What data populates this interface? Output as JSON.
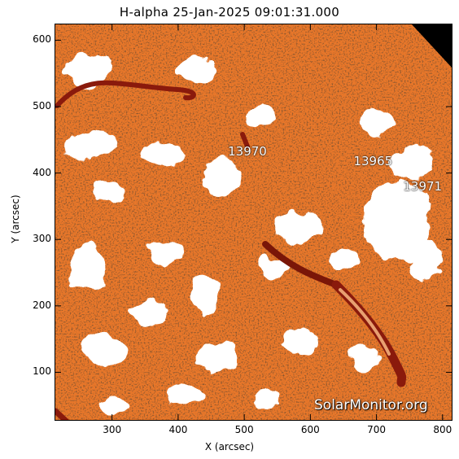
{
  "title": "H-alpha 25-Jan-2025 09:01:31.000",
  "axes": {
    "x_label": "X (arcsec)",
    "y_label": "Y (arcsec)",
    "x_ticks": [
      "300",
      "400",
      "500",
      "600",
      "700",
      "800"
    ],
    "y_ticks": [
      "100",
      "200",
      "300",
      "400",
      "500",
      "600"
    ],
    "x_range": [
      213,
      815
    ],
    "y_range": [
      27,
      625
    ]
  },
  "regions": [
    {
      "id": "13970",
      "x": 500,
      "y": 432
    },
    {
      "id": "13965",
      "x": 690,
      "y": 418
    },
    {
      "id": "13971",
      "x": 765,
      "y": 380
    }
  ],
  "watermark": "SolarMonitor.org",
  "colors": {
    "background": "#e8772a",
    "plage": "#ffffff",
    "filament": "#8a1a0c",
    "limb": "#000000"
  }
}
